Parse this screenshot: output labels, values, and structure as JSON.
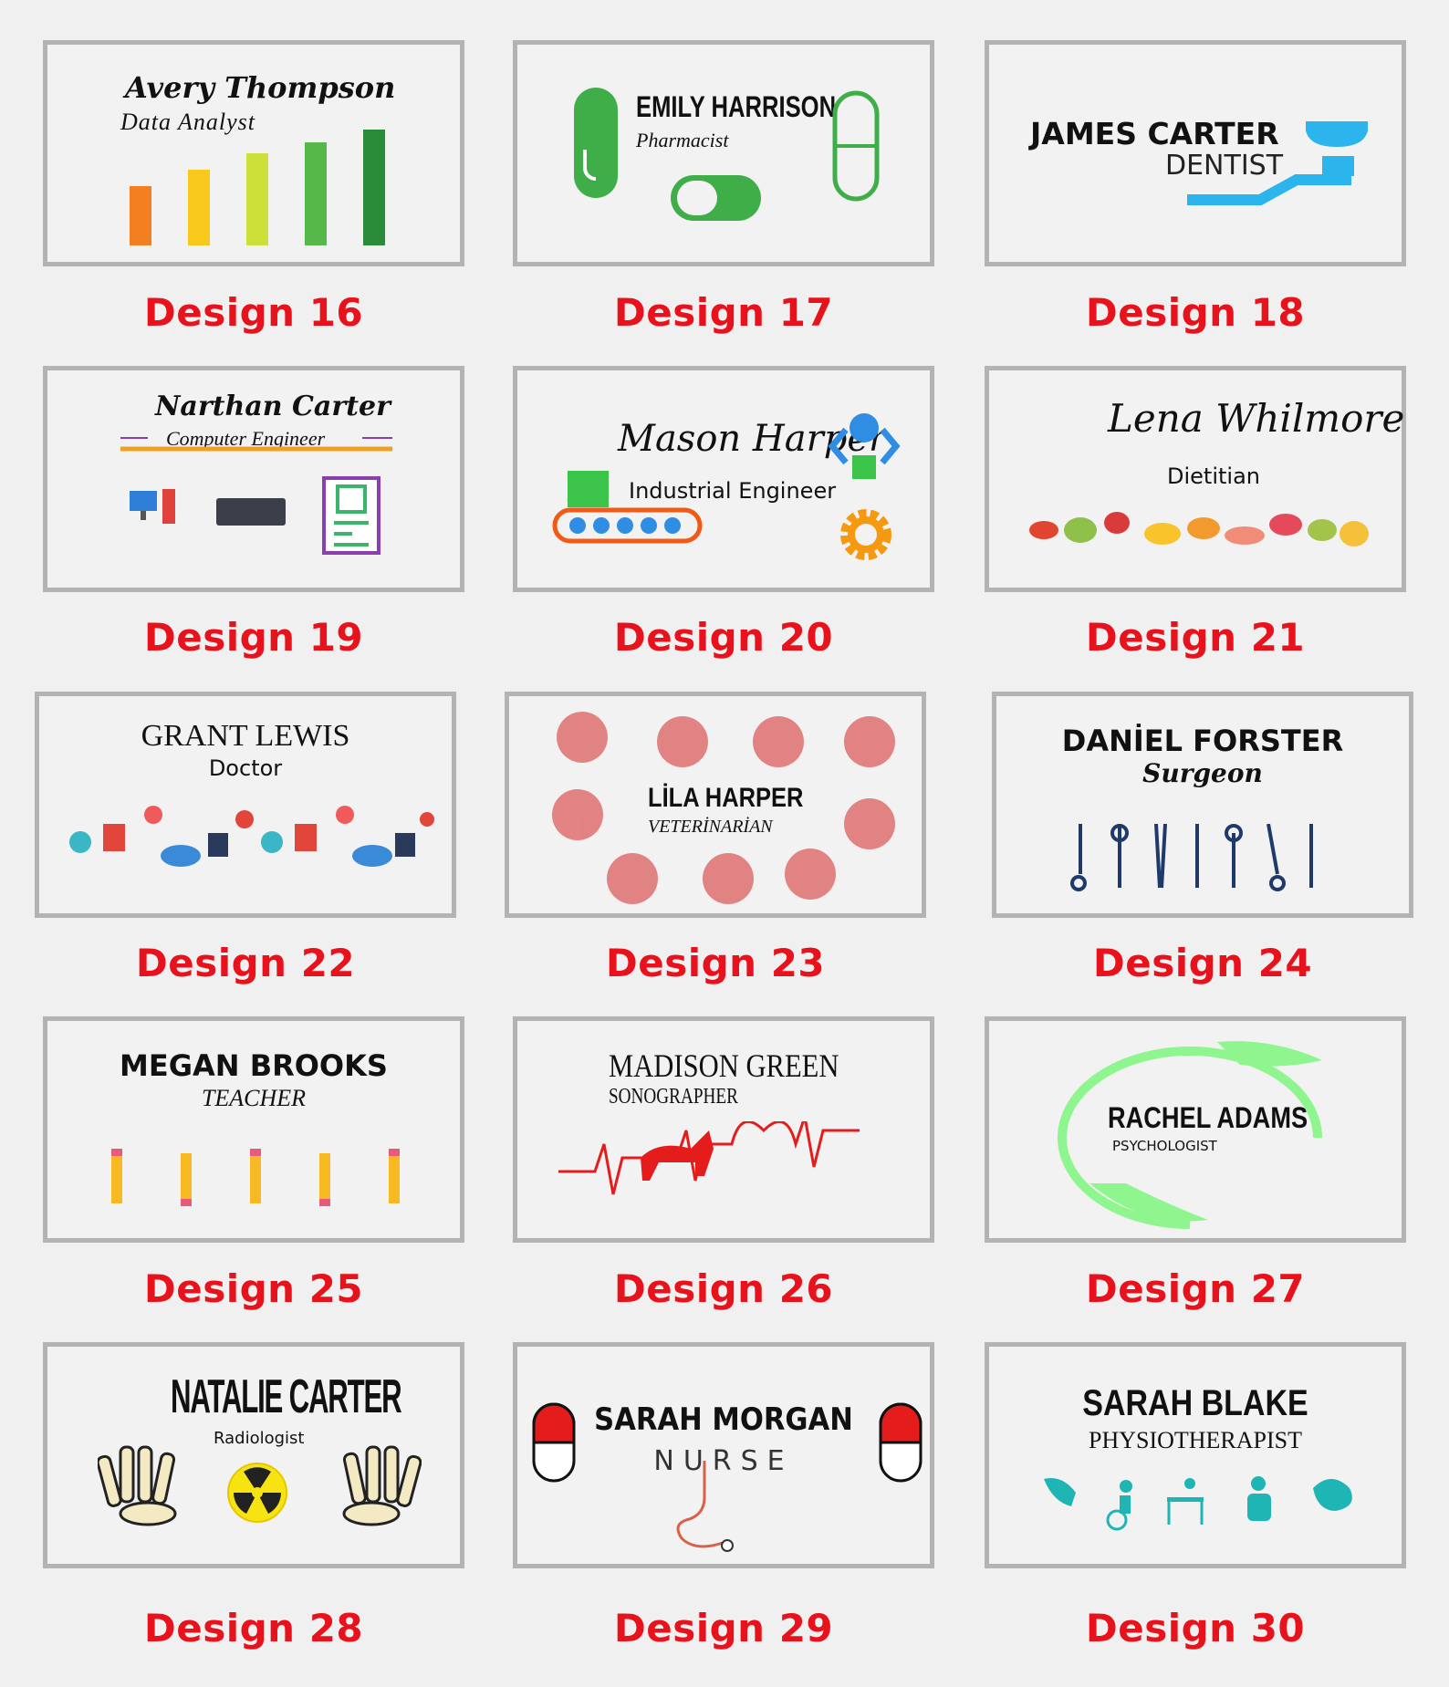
{
  "cards": [
    {
      "label": "Design 16",
      "name": "Avery  Thompson",
      "title": "Data Analyst"
    },
    {
      "label": "Design 17",
      "name": "EMILY HARRISON",
      "title": "Pharmacist"
    },
    {
      "label": "Design 18",
      "name": "JAMES CARTER",
      "title": "DENTIST"
    },
    {
      "label": "Design 19",
      "name": "Narthan Carter",
      "title": "Computer Engineer"
    },
    {
      "label": "Design 20",
      "name": "Mason Harper",
      "title": "Industrial Engineer"
    },
    {
      "label": "Design 21",
      "name": "Lena Whilmore",
      "title": "Dietitian"
    },
    {
      "label": "Design 22",
      "name": "GRANT LEWIS",
      "title": "Doctor"
    },
    {
      "label": "Design 23",
      "name": "LİLA HARPER",
      "title": "VETERİNARİAN"
    },
    {
      "label": "Design 24",
      "name": "DANİEL FORSTER",
      "title": "Surgeon"
    },
    {
      "label": "Design 25",
      "name": "MEGAN BROOKS",
      "title": "TEACHER"
    },
    {
      "label": "Design 26",
      "name": "MADISON GREEN",
      "title": "SONOGRAPHER"
    },
    {
      "label": "Design 27",
      "name": "RACHEL ADAMS",
      "title": "PSYCHOLOGIST"
    },
    {
      "label": "Design 28",
      "name": "NATALIE CARTER",
      "title": "Radiologist"
    },
    {
      "label": "Design 29",
      "name": "SARAH MORGAN",
      "title": "NURSE"
    },
    {
      "label": "Design 30",
      "name": "SARAH BLAKE",
      "title": "PHYSIOTHERAPIST"
    }
  ],
  "colors": {
    "label": "#e8121c",
    "border": "#b3b3b3",
    "background": "#f0f0f0"
  }
}
